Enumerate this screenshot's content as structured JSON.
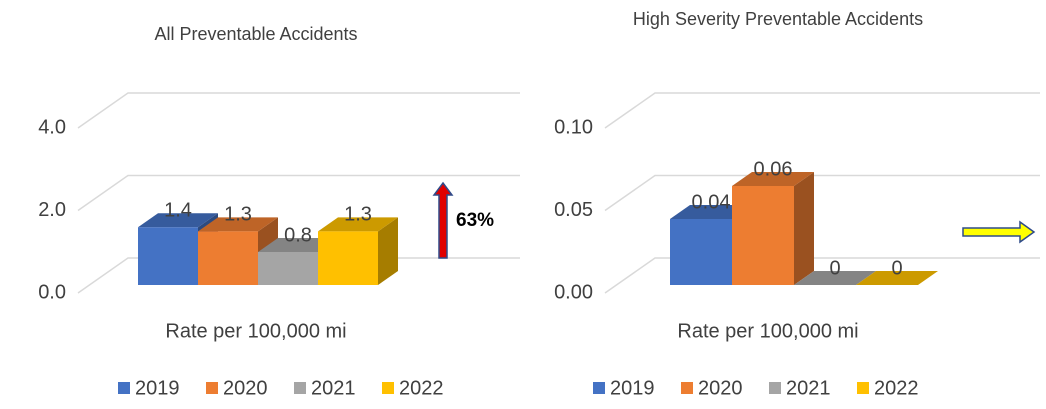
{
  "chart_data": [
    {
      "type": "bar3d",
      "title": "All Preventable Accidents",
      "categories": [
        "Rate per 100,000 mi"
      ],
      "series": [
        {
          "name": "2019",
          "color": "#4472c4",
          "values": [
            1.4
          ]
        },
        {
          "name": "2020",
          "color": "#ed7d31",
          "values": [
            1.3
          ]
        },
        {
          "name": "2021",
          "color": "#a5a5a5",
          "values": [
            0.8
          ]
        },
        {
          "name": "2022",
          "color": "#ffc000",
          "values": [
            1.3
          ]
        }
      ],
      "ylim": [
        0,
        4
      ],
      "yticks": [
        {
          "value": 0,
          "label": "0.0"
        },
        {
          "value": 2,
          "label": "2.0"
        },
        {
          "value": 4,
          "label": "4.0"
        }
      ],
      "grid": true,
      "legend": "bottom",
      "annotation": {
        "text": "63%",
        "arrow": "up",
        "color": "#e00000"
      }
    },
    {
      "type": "bar3d",
      "title": "High Severity Preventable Accidents",
      "categories": [
        "Rate per 100,000 mi"
      ],
      "series": [
        {
          "name": "2019",
          "color": "#4472c4",
          "values": [
            0.04
          ]
        },
        {
          "name": "2020",
          "color": "#ed7d31",
          "values": [
            0.06
          ]
        },
        {
          "name": "2021",
          "color": "#a5a5a5",
          "values": [
            0
          ]
        },
        {
          "name": "2022",
          "color": "#ffc000",
          "values": [
            0
          ]
        }
      ],
      "ylim": [
        0,
        0.1
      ],
      "yticks": [
        {
          "value": 0,
          "label": "0.00"
        },
        {
          "value": 0.05,
          "label": "0.05"
        },
        {
          "value": 0.1,
          "label": "0.10"
        }
      ],
      "grid": true,
      "legend": "bottom",
      "annotation": {
        "arrow": "right",
        "color": "#ffff00"
      }
    }
  ]
}
